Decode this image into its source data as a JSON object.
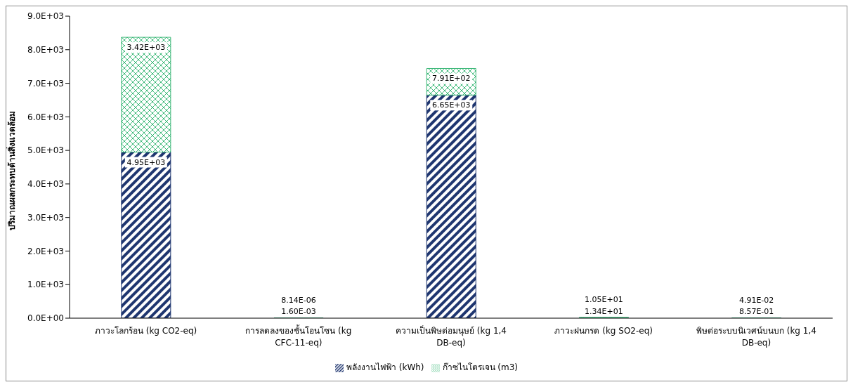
{
  "chart_data": {
    "type": "bar",
    "stacked": true,
    "ylabel": "ปริมาณผลกระทบด้านสิ่งแวดล้อม",
    "categories": [
      "ภาวะโลกร้อน (kg CO2-eq)",
      "การลดลงของชั้นโอนโซน (kg CFC-11-eq)",
      "ความเป็นพิษต่อมนุษย์ (kg 1,4 DB-eq)",
      "ภาวะฝนกรด  (kg SO2-eq)",
      "พิษต่อระบบนิเวศน์บนบก (kg 1,4 DB-eq)"
    ],
    "series": [
      {
        "name": "พลังงานไฟฟ้า (kWh)",
        "color": "#1f3670",
        "values": [
          4950,
          0.0016,
          6650,
          13.4,
          0.857
        ],
        "value_labels": [
          "4.95E+03",
          "1.60E-03",
          "6.65E+03",
          "1.34E+01",
          "8.57E-01"
        ]
      },
      {
        "name": "ก๊าซไนโตรเจน (m3)",
        "color": "#3cb878",
        "values": [
          3420,
          8.14e-06,
          791,
          10.5,
          0.0491
        ],
        "value_labels": [
          "3.42E+03",
          "8.14E-06",
          "7.91E+02",
          "1.05E+01",
          "4.91E-02"
        ]
      }
    ],
    "ylim": [
      0,
      9000
    ],
    "yticks": [
      {
        "value": 0,
        "label": "0.0E+00"
      },
      {
        "value": 1000,
        "label": "1.0E+03"
      },
      {
        "value": 2000,
        "label": "2.0E+03"
      },
      {
        "value": 3000,
        "label": "3.0E+03"
      },
      {
        "value": 4000,
        "label": "4.0E+03"
      },
      {
        "value": 5000,
        "label": "5.0E+03"
      },
      {
        "value": 6000,
        "label": "6.0E+03"
      },
      {
        "value": 7000,
        "label": "7.0E+03"
      },
      {
        "value": 8000,
        "label": "8.0E+03"
      },
      {
        "value": 9000,
        "label": "9.0E+03"
      }
    ],
    "grid": false,
    "legend": "bottom"
  }
}
